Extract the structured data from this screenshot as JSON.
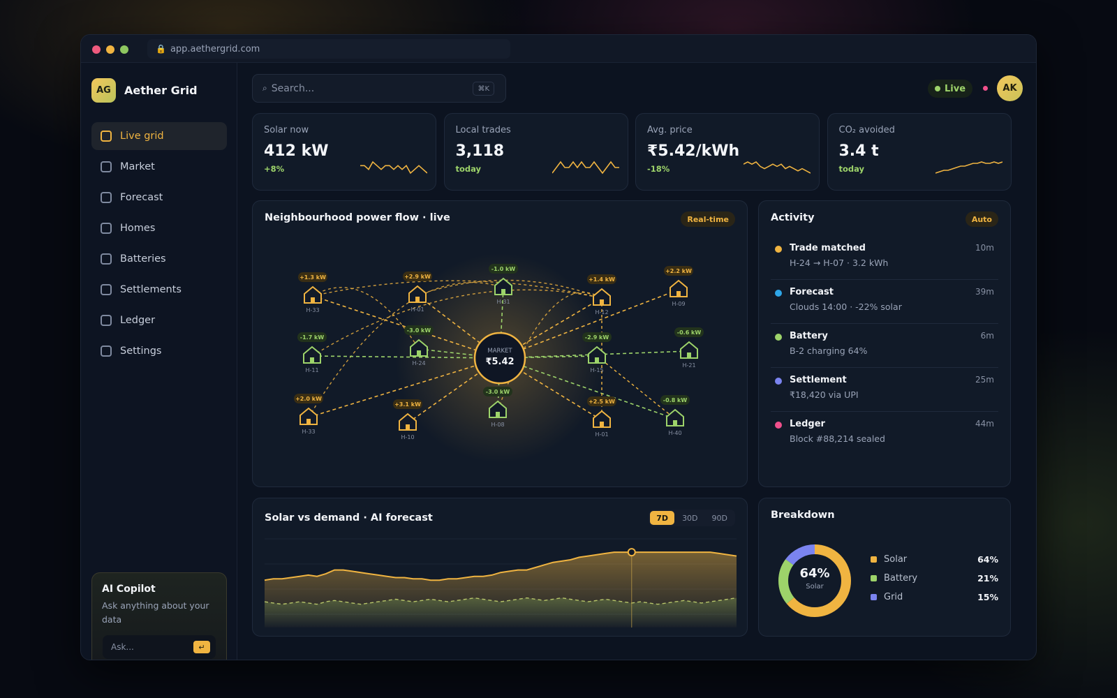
{
  "browser": {
    "url": "app.aethergrid.com"
  },
  "brand": {
    "initials": "AG",
    "name": "Aether Grid"
  },
  "nav": [
    {
      "label": "Live grid",
      "active": true
    },
    {
      "label": "Market"
    },
    {
      "label": "Forecast"
    },
    {
      "label": "Homes"
    },
    {
      "label": "Batteries"
    },
    {
      "label": "Settlements"
    },
    {
      "label": "Ledger"
    },
    {
      "label": "Settings"
    }
  ],
  "copilot": {
    "title": "AI Copilot",
    "desc": "Ask anything about your data",
    "placeholder": "Ask...",
    "enter_icon": "↵"
  },
  "header": {
    "search_placeholder": "Search...",
    "search_shortcut": "⌘K",
    "status": "Live",
    "user_initials": "AK"
  },
  "stats": [
    {
      "label": "Solar now",
      "value": "412 kW",
      "sub": "+8%",
      "trend": [
        5,
        5,
        4,
        6,
        5,
        4,
        5,
        5,
        4,
        5,
        4,
        5,
        3,
        4,
        5,
        4,
        3
      ]
    },
    {
      "label": "Local trades",
      "value": "3,118",
      "sub": "today",
      "trend": [
        4,
        5,
        6,
        5,
        5,
        6,
        5,
        6,
        5,
        5,
        6,
        5,
        4,
        5,
        6,
        5,
        5
      ]
    },
    {
      "label": "Avg. price",
      "value": "₹5.42/kWh",
      "sub": "-18%",
      "trend": [
        5,
        6,
        5,
        6,
        4,
        3,
        4,
        5,
        4,
        5,
        3,
        4,
        3,
        2,
        3,
        2,
        1
      ]
    },
    {
      "label": "CO₂ avoided",
      "value": "3.4 t",
      "sub": "today",
      "trend": [
        1,
        2,
        3,
        3,
        4,
        5,
        6,
        6,
        7,
        8,
        8,
        9,
        8,
        8,
        9,
        8,
        9
      ]
    }
  ],
  "powerflow": {
    "title": "Neighbourhood power flow · live",
    "tag": "Real-time",
    "market_label": "MARKET",
    "market_price": "₹5.42",
    "homes": [
      {
        "id": "H-33",
        "flow": "+1.3 kW",
        "type": "prod"
      },
      {
        "id": "H-01",
        "flow": "+2.9 kW",
        "type": "prod"
      },
      {
        "id": "H-31",
        "flow": "-1.0 kW",
        "type": "cons"
      },
      {
        "id": "H-12",
        "flow": "+1.4 kW",
        "type": "prod"
      },
      {
        "id": "H-09",
        "flow": "+2.2 kW",
        "type": "prod"
      },
      {
        "id": "H-11",
        "flow": "-1.7 kW",
        "type": "cons"
      },
      {
        "id": "H-24",
        "flow": "-3.0 kW",
        "type": "cons"
      },
      {
        "id": "H-15",
        "flow": "-2.9 kW",
        "type": "cons"
      },
      {
        "id": "H-21",
        "flow": "-0.6 kW",
        "type": "cons"
      },
      {
        "id": "H-33",
        "flow": "+2.0 kW",
        "type": "prod"
      },
      {
        "id": "H-10",
        "flow": "+3.1 kW",
        "type": "prod"
      },
      {
        "id": "H-08",
        "flow": "-3.0 kW",
        "type": "cons"
      },
      {
        "id": "H-01",
        "flow": "+2.5 kW",
        "type": "prod"
      },
      {
        "id": "H-40",
        "flow": "-0.8 kW",
        "type": "cons"
      }
    ]
  },
  "activity": {
    "title": "Activity",
    "tag": "Auto",
    "items": [
      {
        "title": "Trade matched",
        "sub": "H-24 → H-07 · 3.2 kWh",
        "time": "10m",
        "color": "#f0b441"
      },
      {
        "title": "Forecast",
        "sub": "Clouds 14:00 · -22% solar",
        "time": "39m",
        "color": "#2ea6e8"
      },
      {
        "title": "Battery",
        "sub": "B-2 charging 64%",
        "time": "6m",
        "color": "#9dd36a"
      },
      {
        "title": "Settlement",
        "sub": "₹18,420 via UPI",
        "time": "25m",
        "color": "#7b84f0"
      },
      {
        "title": "Ledger",
        "sub": "Block #88,214 sealed",
        "time": "44m",
        "color": "#f0508c"
      }
    ]
  },
  "forecast": {
    "title": "Solar vs demand · AI forecast",
    "ranges": [
      "7D",
      "30D",
      "90D"
    ],
    "active_range": "7D"
  },
  "chart_data": {
    "type": "area",
    "series": [
      {
        "values": [
          62,
          63,
          63,
          64,
          65,
          66,
          65,
          67,
          70,
          70,
          69,
          68,
          67,
          66,
          65,
          64,
          64,
          63,
          63,
          62,
          62,
          63,
          63,
          64,
          65,
          65,
          66,
          68,
          69,
          70,
          70,
          72,
          74,
          76,
          77,
          78,
          80,
          81,
          82,
          83,
          84,
          84,
          84,
          84,
          84,
          84,
          84,
          84,
          84,
          84,
          84,
          84,
          83,
          82,
          81
        ]
      },
      {
        "values": [
          45,
          44,
          43,
          44,
          45,
          44,
          43,
          45,
          46,
          45,
          44,
          43,
          44,
          45,
          46,
          47,
          46,
          45,
          46,
          47,
          46,
          45,
          46,
          47,
          48,
          47,
          46,
          45,
          46,
          47,
          48,
          47,
          46,
          47,
          48,
          47,
          46,
          45,
          46,
          47,
          46,
          45,
          44,
          45,
          44,
          43,
          44,
          45,
          46,
          45,
          44,
          45,
          46,
          47,
          48
        ]
      }
    ],
    "marker_index": 42,
    "ylim": [
      0,
      100
    ]
  },
  "breakdown": {
    "title": "Breakdown",
    "center_pct": "64%",
    "center_label": "Solar",
    "items": [
      {
        "label": "Solar",
        "pct": "64%",
        "value": 64,
        "color": "#f0b441"
      },
      {
        "label": "Battery",
        "pct": "21%",
        "value": 21,
        "color": "#9dd36a"
      },
      {
        "label": "Grid",
        "pct": "15%",
        "value": 15,
        "color": "#7b84f0"
      }
    ]
  }
}
